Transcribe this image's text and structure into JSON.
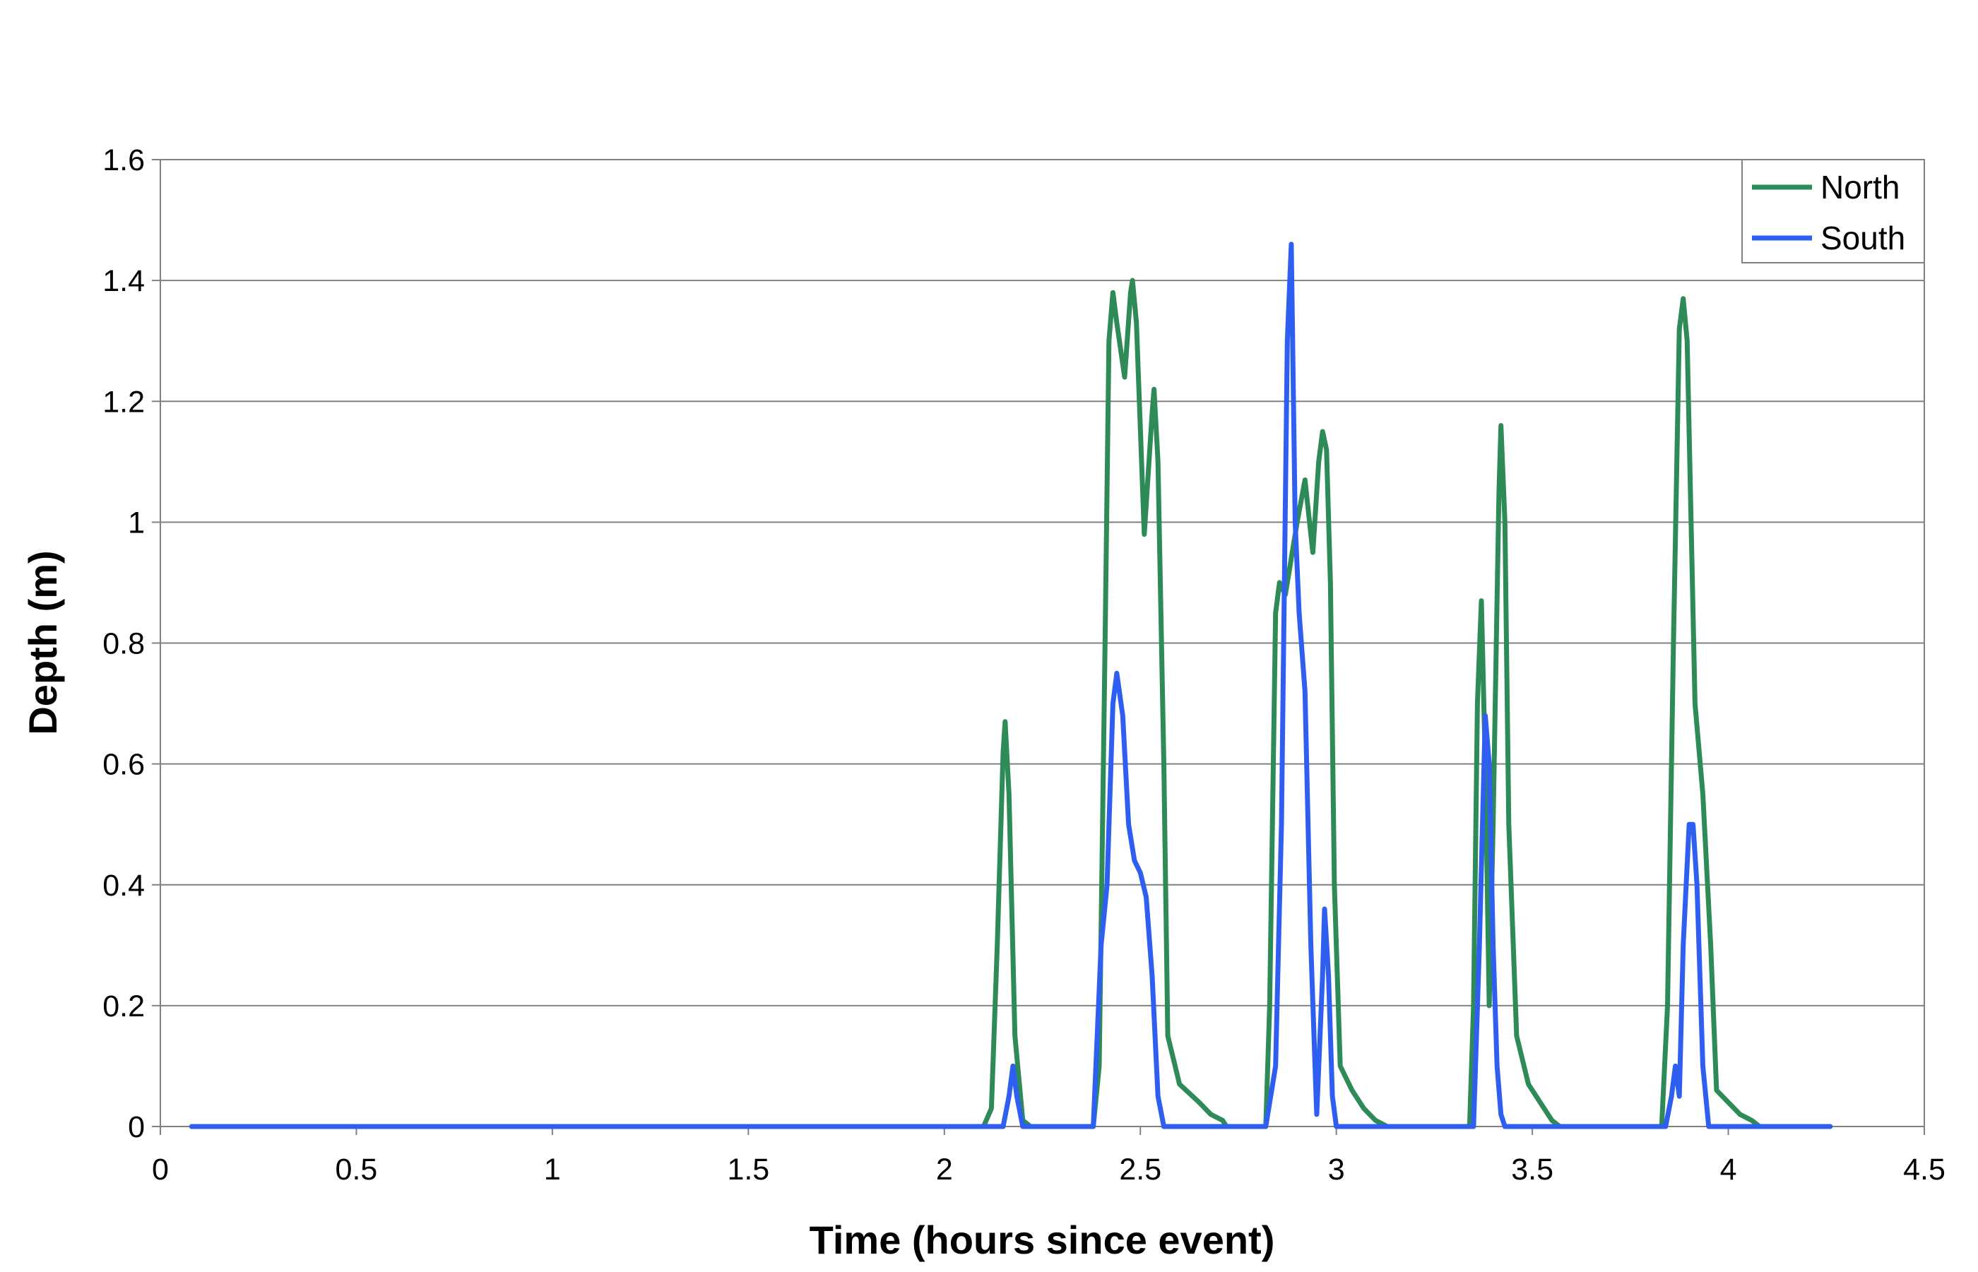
{
  "chart_data": {
    "type": "line",
    "title": "",
    "xlabel": "Time (hours since event)",
    "ylabel": "Depth (m)",
    "xlim": [
      0,
      4.5
    ],
    "ylim": [
      0,
      1.6
    ],
    "x_ticks": [
      "0",
      "0.5",
      "1",
      "1.5",
      "2",
      "2.5",
      "3",
      "3.5",
      "4",
      "4.5"
    ],
    "y_ticks": [
      "0",
      "0.2",
      "0.4",
      "0.6",
      "0.8",
      "1",
      "1.2",
      "1.4",
      "1.6"
    ],
    "grid": "horizontal",
    "legend_position": "top-right",
    "series": [
      {
        "name": "North",
        "color": "#2e8b57",
        "points": [
          [
            0.08,
            0
          ],
          [
            2.1,
            0
          ],
          [
            2.12,
            0.03
          ],
          [
            2.135,
            0.3
          ],
          [
            2.15,
            0.62
          ],
          [
            2.155,
            0.67
          ],
          [
            2.165,
            0.55
          ],
          [
            2.18,
            0.15
          ],
          [
            2.2,
            0.01
          ],
          [
            2.22,
            0
          ],
          [
            2.38,
            0
          ],
          [
            2.395,
            0.1
          ],
          [
            2.41,
            0.8
          ],
          [
            2.42,
            1.3
          ],
          [
            2.43,
            1.38
          ],
          [
            2.44,
            1.33
          ],
          [
            2.46,
            1.24
          ],
          [
            2.475,
            1.38
          ],
          [
            2.48,
            1.4
          ],
          [
            2.49,
            1.33
          ],
          [
            2.51,
            0.98
          ],
          [
            2.53,
            1.18
          ],
          [
            2.535,
            1.22
          ],
          [
            2.545,
            1.1
          ],
          [
            2.56,
            0.6
          ],
          [
            2.57,
            0.15
          ],
          [
            2.6,
            0.07
          ],
          [
            2.65,
            0.04
          ],
          [
            2.68,
            0.02
          ],
          [
            2.71,
            0.01
          ],
          [
            2.72,
            0
          ],
          [
            2.82,
            0
          ],
          [
            2.83,
            0.2
          ],
          [
            2.845,
            0.85
          ],
          [
            2.855,
            0.9
          ],
          [
            2.87,
            0.88
          ],
          [
            2.9,
            1.0
          ],
          [
            2.92,
            1.07
          ],
          [
            2.94,
            0.95
          ],
          [
            2.955,
            1.1
          ],
          [
            2.965,
            1.15
          ],
          [
            2.975,
            1.12
          ],
          [
            2.985,
            0.9
          ],
          [
            2.995,
            0.4
          ],
          [
            3.01,
            0.1
          ],
          [
            3.04,
            0.06
          ],
          [
            3.07,
            0.03
          ],
          [
            3.1,
            0.01
          ],
          [
            3.13,
            0
          ],
          [
            3.34,
            0
          ],
          [
            3.35,
            0.2
          ],
          [
            3.36,
            0.7
          ],
          [
            3.37,
            0.87
          ],
          [
            3.38,
            0.6
          ],
          [
            3.39,
            0.2
          ],
          [
            3.4,
            0.5
          ],
          [
            3.415,
            1.05
          ],
          [
            3.42,
            1.16
          ],
          [
            3.43,
            1.0
          ],
          [
            3.44,
            0.5
          ],
          [
            3.46,
            0.15
          ],
          [
            3.49,
            0.07
          ],
          [
            3.52,
            0.04
          ],
          [
            3.55,
            0.01
          ],
          [
            3.57,
            0
          ],
          [
            3.83,
            0
          ],
          [
            3.845,
            0.2
          ],
          [
            3.86,
            0.8
          ],
          [
            3.875,
            1.32
          ],
          [
            3.885,
            1.37
          ],
          [
            3.895,
            1.3
          ],
          [
            3.915,
            0.7
          ],
          [
            3.935,
            0.55
          ],
          [
            3.955,
            0.3
          ],
          [
            3.97,
            0.06
          ],
          [
            4.0,
            0.04
          ],
          [
            4.03,
            0.02
          ],
          [
            4.06,
            0.01
          ],
          [
            4.08,
            0
          ]
        ]
      },
      {
        "name": "South",
        "color": "#2f5ff0",
        "points": [
          [
            0.08,
            0
          ],
          [
            2.15,
            0
          ],
          [
            2.165,
            0.05
          ],
          [
            2.175,
            0.1
          ],
          [
            2.185,
            0.05
          ],
          [
            2.2,
            0
          ],
          [
            2.38,
            0
          ],
          [
            2.39,
            0.15
          ],
          [
            2.4,
            0.3
          ],
          [
            2.415,
            0.4
          ],
          [
            2.43,
            0.7
          ],
          [
            2.44,
            0.75
          ],
          [
            2.455,
            0.68
          ],
          [
            2.47,
            0.5
          ],
          [
            2.485,
            0.44
          ],
          [
            2.5,
            0.42
          ],
          [
            2.515,
            0.38
          ],
          [
            2.53,
            0.25
          ],
          [
            2.545,
            0.05
          ],
          [
            2.56,
            0
          ],
          [
            2.82,
            0
          ],
          [
            2.845,
            0.1
          ],
          [
            2.86,
            0.5
          ],
          [
            2.875,
            1.3
          ],
          [
            2.885,
            1.46
          ],
          [
            2.895,
            1.0
          ],
          [
            2.905,
            0.85
          ],
          [
            2.92,
            0.72
          ],
          [
            2.935,
            0.3
          ],
          [
            2.95,
            0.02
          ],
          [
            2.965,
            0.25
          ],
          [
            2.97,
            0.36
          ],
          [
            2.98,
            0.25
          ],
          [
            2.99,
            0.05
          ],
          [
            3.0,
            0
          ],
          [
            3.35,
            0
          ],
          [
            3.365,
            0.3
          ],
          [
            3.38,
            0.68
          ],
          [
            3.39,
            0.6
          ],
          [
            3.4,
            0.3
          ],
          [
            3.41,
            0.1
          ],
          [
            3.42,
            0.02
          ],
          [
            3.43,
            0
          ],
          [
            3.84,
            0
          ],
          [
            3.855,
            0.05
          ],
          [
            3.865,
            0.1
          ],
          [
            3.875,
            0.05
          ],
          [
            3.885,
            0.3
          ],
          [
            3.9,
            0.5
          ],
          [
            3.91,
            0.5
          ],
          [
            3.92,
            0.4
          ],
          [
            3.935,
            0.1
          ],
          [
            3.95,
            0
          ],
          [
            4.26,
            0
          ]
        ]
      }
    ]
  }
}
